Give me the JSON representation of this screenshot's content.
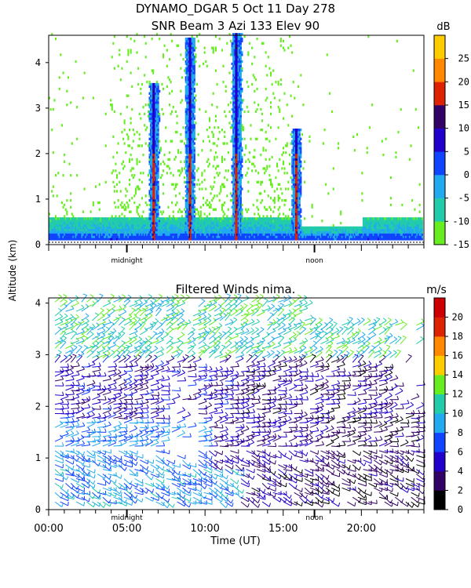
{
  "header": {
    "line1": "DYNAMO_DGAR    5 Oct 11 Day 278",
    "line2": "SNR Beam 3 Azi 133 Elev 90"
  },
  "shared_axis": {
    "ylabel": "Altitude (km)",
    "xlabel": "Time (UT)",
    "xlim_hours": [
      0,
      24
    ],
    "x_tick_labels": [
      {
        "hour": 0,
        "label": "00:00"
      },
      {
        "hour": 5,
        "label": "05:00"
      },
      {
        "hour": 10,
        "label": "10:00"
      },
      {
        "hour": 15,
        "label": "15:00"
      },
      {
        "hour": 20,
        "label": "20:00"
      }
    ],
    "marker_labels": [
      {
        "hour": 5,
        "label": "midnight"
      },
      {
        "hour": 17,
        "label": "noon"
      }
    ]
  },
  "chart_data": [
    {
      "type": "heatmap",
      "title": "SNR Beam 3 Azi 133 Elev 90",
      "ylim": [
        0,
        4.6
      ],
      "y_ticks": [
        0,
        1,
        2,
        3,
        4
      ],
      "colorbar": {
        "unit": "dB",
        "range": [
          -15,
          30
        ],
        "ticks": [
          -15,
          -10,
          -5,
          0,
          5,
          10,
          15,
          20,
          25
        ],
        "colors": [
          "#66ee22",
          "#22ccaa",
          "#22aaee",
          "#1144ff",
          "#2200cc",
          "#330066",
          "#dd2200",
          "#ff8800",
          "#ffcc00"
        ]
      },
      "features": {
        "boundary_layer_top_km": 0.55,
        "convective_columns_hours": [
          6.7,
          9.0,
          12.0,
          15.8
        ],
        "convective_column_tops_km": [
          3.5,
          4.5,
          4.6,
          2.5
        ]
      }
    },
    {
      "type": "vector",
      "title": "Filtered Winds nima.",
      "ylim": [
        0,
        4.1
      ],
      "y_ticks": [
        0,
        1,
        2,
        3,
        4
      ],
      "colorbar": {
        "unit": "m/s",
        "range": [
          0,
          22
        ],
        "ticks": [
          0,
          2,
          4,
          6,
          8,
          10,
          12,
          14,
          16,
          18,
          20
        ],
        "colors": [
          "#000000",
          "#330066",
          "#2200cc",
          "#1144ff",
          "#22aaee",
          "#22ccaa",
          "#66ee22",
          "#ffcc00",
          "#ff8800",
          "#dd2200",
          "#cc0000"
        ]
      }
    }
  ]
}
